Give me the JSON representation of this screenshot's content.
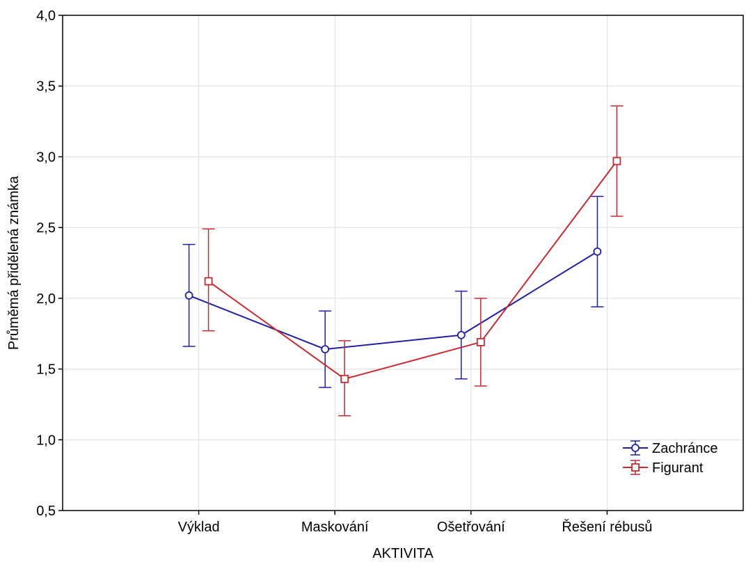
{
  "chart_data": {
    "type": "line",
    "error_bars": true,
    "xlabel": "AKTIVITA",
    "ylabel": "Průměmá přidělená známka",
    "categories": [
      "Výklad",
      "Maskování",
      "Ošetřování",
      "Řešení rébusů"
    ],
    "ylim": [
      0.5,
      4.0
    ],
    "yticks": [
      0.5,
      1.0,
      1.5,
      2.0,
      2.5,
      3.0,
      3.5,
      4.0
    ],
    "ytick_labels": [
      "0,5",
      "1,0",
      "1,5",
      "2,0",
      "2,5",
      "3,0",
      "3,5",
      "4,0"
    ],
    "grid": true,
    "legend_position": "bottom-right",
    "series": [
      {
        "name": "Zachránce",
        "color": "#1f1fa8",
        "marker": "circle",
        "values": [
          2.02,
          1.64,
          1.74,
          2.33
        ],
        "lower": [
          1.66,
          1.37,
          1.43,
          1.94
        ],
        "upper": [
          2.38,
          1.91,
          2.05,
          2.72
        ]
      },
      {
        "name": "Figurant",
        "color": "#c8282d",
        "marker": "square",
        "values": [
          2.12,
          1.43,
          1.69,
          2.97
        ],
        "lower": [
          1.77,
          1.17,
          1.38,
          2.58
        ],
        "upper": [
          2.49,
          1.7,
          2.0,
          3.36
        ]
      }
    ]
  }
}
